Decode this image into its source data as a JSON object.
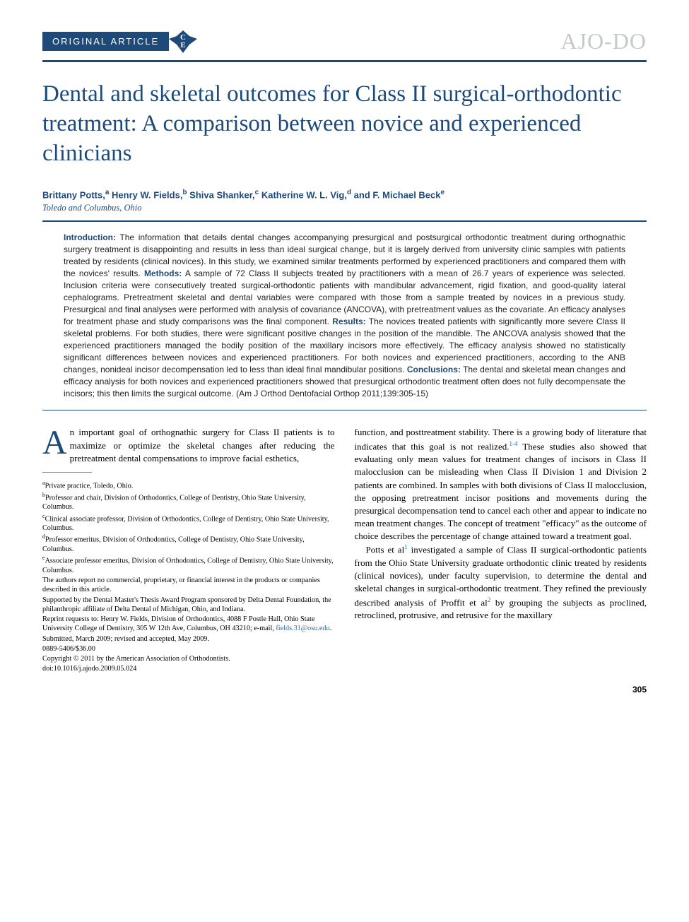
{
  "header": {
    "article_type": "ORIGINAL ARTICLE",
    "ce_badge": "CE",
    "journal_logo": "AJO-DO"
  },
  "title": "Dental and skeletal outcomes for Class II surgical-orthodontic treatment: A comparison between novice and experienced clinicians",
  "authors_html": "Brittany Potts,<sup>a</sup> Henry W. Fields,<sup>b</sup> Shiva Shanker,<sup>c</sup> Katherine W. L. Vig,<sup>d</sup> and F. Michael Beck<sup>e</sup>",
  "affiliation_city": "Toledo and Columbus, Ohio",
  "abstract": {
    "intro_label": "Introduction:",
    "intro_text": " The information that details dental changes accompanying presurgical and postsurgical orthodontic treatment during orthognathic surgery treatment is disappointing and results in less than ideal surgical change, but it is largely derived from university clinic samples with patients treated by residents (clinical novices). In this study, we examined similar treatments performed by experienced practitioners and compared them with the novices' results. ",
    "methods_label": "Methods:",
    "methods_text": " A sample of 72 Class II subjects treated by practitioners with a mean of 26.7 years of experience was selected. Inclusion criteria were consecutively treated surgical-orthodontic patients with mandibular advancement, rigid fixation, and good-quality lateral cephalograms. Pretreatment skeletal and dental variables were compared with those from a sample treated by novices in a previous study. Presurgical and final analyses were performed with analysis of covariance (ANCOVA), with pretreatment values as the covariate. An efficacy analyses for treatment phase and study comparisons was the final component. ",
    "results_label": "Results:",
    "results_text": " The novices treated patients with significantly more severe Class II skeletal problems. For both studies, there were significant positive changes in the position of the mandible. The ANCOVA analysis showed that the experienced practitioners managed the bodily position of the maxillary incisors more effectively. The efficacy analysis showed no statistically significant differences between novices and experienced practitioners. For both novices and experienced practitioners, according to the ANB changes, nonideal incisor decompensation led to less than ideal final mandibular positions. ",
    "conclusions_label": "Conclusions:",
    "conclusions_text": " The dental and skeletal mean changes and efficacy analysis for both novices and experienced practitioners showed that presurgical orthodontic treatment often does not fully decompensate the incisors; this then limits the surgical outcome. (Am J Orthod Dentofacial Orthop 2011;139:305-15)"
  },
  "body": {
    "col1": {
      "dropcap": "A",
      "intro_rest": "n important goal of orthognathic surgery for Class II patients is to maximize or optimize the skeletal changes after reducing the pretreatment dental compensations to improve facial esthetics,"
    },
    "footnotes": {
      "a": "Private practice, Toledo, Ohio.",
      "b": "Professor and chair, Division of Orthodontics, College of Dentistry, Ohio State University, Columbus.",
      "c": "Clinical associate professor, Division of Orthodontics, College of Dentistry, Ohio State University, Columbus.",
      "d": "Professor emeritus, Division of Orthodontics, College of Dentistry, Ohio State University, Columbus.",
      "e": "Associate professor emeritus, Division of Orthodontics, College of Dentistry, Ohio State University, Columbus.",
      "disclosure": "The authors report no commercial, proprietary, or financial interest in the products or companies described in this article.",
      "support": "Supported by the Dental Master's Thesis Award Program sponsored by Delta Dental Foundation, the philanthropic affiliate of Delta Dental of Michigan, Ohio, and Indiana.",
      "reprint": "Reprint requests to: Henry W. Fields, Division of Orthodontics, 4088 F Postle Hall, Ohio State University College of Dentistry, 305 W 12th Ave, Columbus, OH 43210; e-mail, ",
      "email": "fields.31@osu.edu",
      "reprint_end": ".",
      "submitted": "Submitted, March 2009; revised and accepted, May 2009.",
      "issn": "0889-5406/$36.00",
      "copyright": "Copyright © 2011 by the American Association of Orthodontists.",
      "doi": "doi:10.1016/j.ajodo.2009.05.024"
    },
    "col2": {
      "para1_html": "function, and posttreatment stability. There is a growing body of literature that indicates that this goal is not realized.<sup class=\"ref-sup\">1-4</sup> These studies also showed that evaluating only mean values for treatment changes of incisors in Class II malocclusion can be misleading when Class II Division 1 and Division 2 patients are combined. In samples with both divisions of Class II malocclusion, the opposing pretreatment incisor positions and movements during the presurgical decompensation tend to cancel each other and appear to indicate no mean treatment changes. The concept of treatment \"efficacy\" as the outcome of choice describes the percentage of change attained toward a treatment goal.",
      "para2_html": "Potts et al<sup class=\"ref-sup\">1</sup> investigated a sample of Class II surgical-orthodontic patients from the Ohio State University graduate orthodontic clinic treated by residents (clinical novices), under faculty supervision, to determine the dental and skeletal changes in surgical-orthodontic treatment. They refined the previously described analysis of Proffit et al<sup class=\"ref-sup\">2</sup> by grouping the subjects as proclined, retroclined, protrusive, and retrusive for the maxillary"
    }
  },
  "page_number": "305",
  "colors": {
    "primary": "#1e4a7a",
    "link": "#1e6fbf",
    "logo_gray": "#c5c9cc"
  },
  "typography": {
    "title_fontsize": 33,
    "abstract_fontsize": 12,
    "body_fontsize": 13,
    "footnote_fontsize": 10.2
  }
}
